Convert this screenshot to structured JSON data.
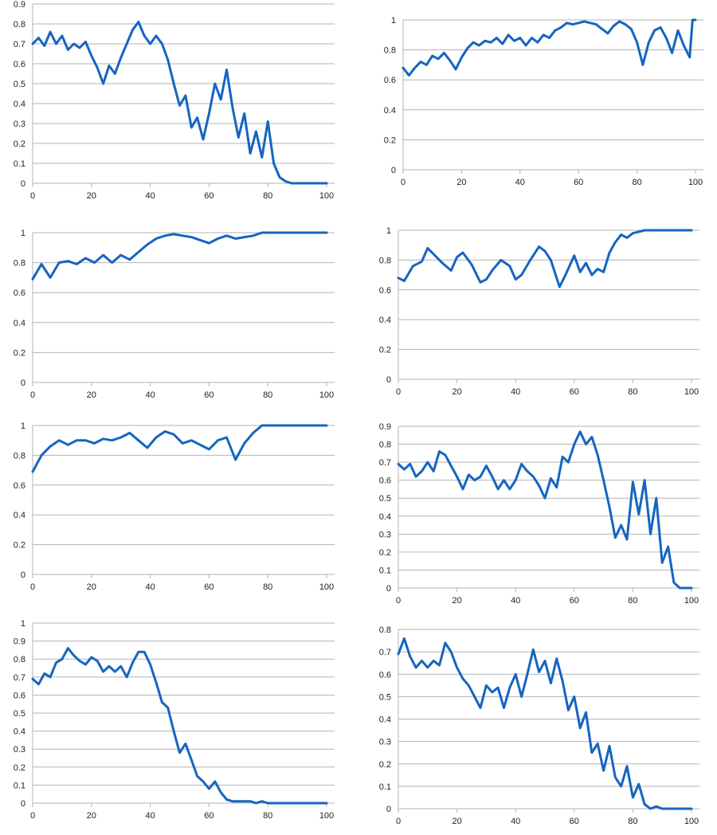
{
  "style": {
    "line_color": "#1565c0",
    "grid_color": "#b3b3b3"
  },
  "chart_data": [
    {
      "type": "line",
      "grid": true,
      "xlim": [
        0,
        100
      ],
      "ylim": [
        0,
        0.9
      ],
      "xticks": [
        0,
        20,
        40,
        60,
        80,
        100
      ],
      "yticks": [
        0,
        0.1,
        0.2,
        0.3,
        0.4,
        0.5,
        0.6,
        0.7,
        0.8,
        0.9
      ],
      "ytick_labels": [
        "0",
        "0.1",
        "0.2",
        "0.3",
        "0.4",
        "0.5",
        "0.6",
        "0.7",
        "0.8",
        "0.9"
      ],
      "x": [
        0,
        2,
        4,
        6,
        8,
        10,
        12,
        14,
        16,
        18,
        20,
        22,
        24,
        26,
        28,
        30,
        32,
        34,
        36,
        38,
        40,
        42,
        44,
        46,
        48,
        50,
        52,
        54,
        56,
        58,
        60,
        62,
        64,
        66,
        68,
        70,
        72,
        74,
        76,
        78,
        80,
        82,
        84,
        86,
        88,
        90,
        92,
        94,
        96,
        98,
        100
      ],
      "y": [
        0.7,
        0.73,
        0.69,
        0.76,
        0.7,
        0.74,
        0.67,
        0.7,
        0.68,
        0.71,
        0.64,
        0.58,
        0.5,
        0.59,
        0.55,
        0.63,
        0.7,
        0.77,
        0.81,
        0.74,
        0.7,
        0.74,
        0.7,
        0.62,
        0.5,
        0.39,
        0.44,
        0.28,
        0.33,
        0.22,
        0.35,
        0.5,
        0.42,
        0.57,
        0.38,
        0.23,
        0.35,
        0.15,
        0.26,
        0.13,
        0.31,
        0.1,
        0.03,
        0.01,
        0.0,
        0.0,
        0.0,
        0.0,
        0.0,
        0.0,
        0.0
      ]
    },
    {
      "type": "line",
      "grid": true,
      "xlim": [
        0,
        100
      ],
      "ylim": [
        0,
        1
      ],
      "xticks": [
        0,
        20,
        40,
        60,
        80,
        100
      ],
      "yticks": [
        0,
        0.2,
        0.4,
        0.6,
        0.8,
        1
      ],
      "ytick_labels": [
        "0",
        "0.2",
        "0.4",
        "0.6",
        "0.8",
        "1"
      ],
      "x": [
        0,
        2,
        4,
        6,
        8,
        10,
        12,
        14,
        16,
        18,
        20,
        22,
        24,
        26,
        28,
        30,
        32,
        34,
        36,
        38,
        40,
        42,
        44,
        46,
        48,
        50,
        52,
        54,
        56,
        58,
        60,
        62,
        64,
        66,
        68,
        70,
        72,
        74,
        76,
        78,
        80,
        82,
        84,
        86,
        88,
        90,
        92,
        94,
        96,
        98,
        99,
        100
      ],
      "y": [
        0.68,
        0.63,
        0.68,
        0.72,
        0.7,
        0.76,
        0.74,
        0.78,
        0.73,
        0.67,
        0.75,
        0.81,
        0.85,
        0.83,
        0.86,
        0.85,
        0.88,
        0.84,
        0.9,
        0.86,
        0.88,
        0.83,
        0.88,
        0.85,
        0.9,
        0.88,
        0.93,
        0.95,
        0.98,
        0.97,
        0.98,
        0.99,
        0.98,
        0.97,
        0.94,
        0.91,
        0.96,
        0.99,
        0.97,
        0.94,
        0.85,
        0.7,
        0.85,
        0.93,
        0.95,
        0.88,
        0.78,
        0.93,
        0.83,
        0.75,
        1.0,
        1.0
      ]
    },
    {
      "type": "line",
      "grid": true,
      "xlim": [
        0,
        100
      ],
      "ylim": [
        0,
        1
      ],
      "xticks": [
        0,
        20,
        40,
        60,
        80,
        100
      ],
      "yticks": [
        0,
        0.2,
        0.4,
        0.6,
        0.8,
        1
      ],
      "ytick_labels": [
        "0",
        "0.2",
        "0.4",
        "0.6",
        "0.8",
        "1"
      ],
      "x": [
        0,
        3,
        6,
        9,
        12,
        15,
        18,
        21,
        24,
        27,
        30,
        33,
        36,
        39,
        42,
        45,
        48,
        51,
        54,
        57,
        60,
        63,
        66,
        69,
        72,
        75,
        78,
        80,
        85,
        90,
        95,
        100
      ],
      "y": [
        0.69,
        0.79,
        0.7,
        0.8,
        0.81,
        0.79,
        0.83,
        0.8,
        0.85,
        0.8,
        0.85,
        0.82,
        0.87,
        0.92,
        0.96,
        0.98,
        0.99,
        0.98,
        0.97,
        0.95,
        0.93,
        0.96,
        0.98,
        0.96,
        0.97,
        0.98,
        1.0,
        1.0,
        1.0,
        1.0,
        1.0,
        1.0
      ]
    },
    {
      "type": "line",
      "grid": true,
      "xlim": [
        0,
        100
      ],
      "ylim": [
        0,
        1
      ],
      "xticks": [
        0,
        20,
        40,
        60,
        80,
        100
      ],
      "yticks": [
        0,
        0.2,
        0.4,
        0.6,
        0.8,
        1
      ],
      "ytick_labels": [
        "0",
        "0.2",
        "0.4",
        "0.6",
        "0.8",
        "1"
      ],
      "x": [
        0,
        2,
        5,
        8,
        10,
        12,
        15,
        18,
        20,
        22,
        25,
        28,
        30,
        32,
        35,
        38,
        40,
        42,
        45,
        48,
        50,
        52,
        55,
        57,
        60,
        62,
        64,
        66,
        68,
        70,
        72,
        74,
        76,
        78,
        80,
        82,
        84,
        90,
        95,
        100
      ],
      "y": [
        0.68,
        0.66,
        0.76,
        0.79,
        0.88,
        0.84,
        0.78,
        0.73,
        0.82,
        0.85,
        0.77,
        0.65,
        0.67,
        0.73,
        0.8,
        0.76,
        0.67,
        0.7,
        0.8,
        0.89,
        0.86,
        0.8,
        0.62,
        0.7,
        0.83,
        0.72,
        0.78,
        0.7,
        0.74,
        0.72,
        0.85,
        0.92,
        0.97,
        0.95,
        0.98,
        0.99,
        1.0,
        1.0,
        1.0,
        1.0
      ]
    },
    {
      "type": "line",
      "grid": true,
      "xlim": [
        0,
        100
      ],
      "ylim": [
        0,
        1
      ],
      "xticks": [
        0,
        20,
        40,
        60,
        80,
        100
      ],
      "yticks": [
        0,
        0.2,
        0.4,
        0.6,
        0.8,
        1
      ],
      "ytick_labels": [
        "0",
        "0.2",
        "0.4",
        "0.6",
        "0.8",
        "1"
      ],
      "x": [
        0,
        3,
        6,
        9,
        12,
        15,
        18,
        21,
        24,
        27,
        30,
        33,
        36,
        39,
        42,
        45,
        48,
        51,
        54,
        57,
        60,
        63,
        66,
        69,
        72,
        75,
        78,
        80,
        85,
        90,
        95,
        100
      ],
      "y": [
        0.69,
        0.8,
        0.86,
        0.9,
        0.87,
        0.9,
        0.9,
        0.88,
        0.91,
        0.9,
        0.92,
        0.95,
        0.9,
        0.85,
        0.92,
        0.96,
        0.94,
        0.88,
        0.9,
        0.87,
        0.84,
        0.9,
        0.92,
        0.77,
        0.88,
        0.95,
        1.0,
        1.0,
        1.0,
        1.0,
        1.0,
        1.0
      ]
    },
    {
      "type": "line",
      "grid": true,
      "xlim": [
        0,
        100
      ],
      "ylim": [
        0,
        0.9
      ],
      "xticks": [
        0,
        20,
        40,
        60,
        80,
        100
      ],
      "yticks": [
        0,
        0.1,
        0.2,
        0.3,
        0.4,
        0.5,
        0.6,
        0.7,
        0.8,
        0.9
      ],
      "ytick_labels": [
        "0",
        "0.1",
        "0.2",
        "0.3",
        "0.4",
        "0.5",
        "0.6",
        "0.7",
        "0.8",
        "0.9"
      ],
      "x": [
        0,
        2,
        4,
        6,
        8,
        10,
        12,
        14,
        16,
        18,
        20,
        22,
        24,
        26,
        28,
        30,
        32,
        34,
        36,
        38,
        40,
        42,
        44,
        46,
        48,
        50,
        52,
        54,
        56,
        58,
        60,
        62,
        64,
        66,
        68,
        70,
        72,
        74,
        76,
        78,
        80,
        82,
        84,
        86,
        88,
        90,
        92,
        94,
        96,
        98,
        100
      ],
      "y": [
        0.69,
        0.66,
        0.69,
        0.62,
        0.65,
        0.7,
        0.65,
        0.76,
        0.74,
        0.68,
        0.62,
        0.55,
        0.63,
        0.6,
        0.62,
        0.68,
        0.62,
        0.55,
        0.6,
        0.55,
        0.6,
        0.69,
        0.65,
        0.62,
        0.57,
        0.5,
        0.61,
        0.56,
        0.73,
        0.7,
        0.8,
        0.87,
        0.8,
        0.84,
        0.74,
        0.6,
        0.45,
        0.28,
        0.35,
        0.27,
        0.59,
        0.41,
        0.6,
        0.3,
        0.5,
        0.14,
        0.23,
        0.03,
        0.0,
        0.0,
        0.0
      ]
    },
    {
      "type": "line",
      "grid": true,
      "xlim": [
        0,
        100
      ],
      "ylim": [
        0,
        1
      ],
      "xticks": [
        0,
        20,
        40,
        60,
        80,
        100
      ],
      "yticks": [
        0,
        0.1,
        0.2,
        0.3,
        0.4,
        0.5,
        0.6,
        0.7,
        0.8,
        0.9,
        1
      ],
      "ytick_labels": [
        "0",
        "0.1",
        "0.2",
        "0.3",
        "0.4",
        "0.5",
        "0.6",
        "0.7",
        "0.8",
        "0.9",
        "1"
      ],
      "x": [
        0,
        2,
        4,
        6,
        8,
        10,
        12,
        14,
        16,
        18,
        20,
        22,
        24,
        26,
        28,
        30,
        32,
        34,
        36,
        38,
        40,
        42,
        44,
        46,
        48,
        50,
        52,
        54,
        56,
        58,
        60,
        62,
        64,
        66,
        68,
        70,
        72,
        74,
        76,
        78,
        80,
        82,
        84,
        86,
        88,
        90,
        92,
        94,
        96,
        98,
        100
      ],
      "y": [
        0.69,
        0.66,
        0.72,
        0.7,
        0.78,
        0.8,
        0.86,
        0.82,
        0.79,
        0.77,
        0.81,
        0.79,
        0.73,
        0.76,
        0.73,
        0.76,
        0.7,
        0.78,
        0.84,
        0.84,
        0.77,
        0.67,
        0.56,
        0.53,
        0.4,
        0.28,
        0.33,
        0.24,
        0.15,
        0.12,
        0.08,
        0.12,
        0.06,
        0.02,
        0.01,
        0.01,
        0.01,
        0.01,
        0.0,
        0.01,
        0.0,
        0.0,
        0.0,
        0.0,
        0.0,
        0.0,
        0.0,
        0.0,
        0.0,
        0.0,
        0.0
      ]
    },
    {
      "type": "line",
      "grid": true,
      "xlim": [
        0,
        100
      ],
      "ylim": [
        0,
        0.8
      ],
      "xticks": [
        0,
        20,
        40,
        60,
        80,
        100
      ],
      "yticks": [
        0,
        0.1,
        0.2,
        0.3,
        0.4,
        0.5,
        0.6,
        0.7,
        0.8
      ],
      "ytick_labels": [
        "0",
        "0.1",
        "0.2",
        "0.3",
        "0.4",
        "0.5",
        "0.6",
        "0.7",
        "0.8"
      ],
      "x": [
        0,
        2,
        4,
        6,
        8,
        10,
        12,
        14,
        16,
        18,
        20,
        22,
        24,
        26,
        28,
        30,
        32,
        34,
        36,
        38,
        40,
        42,
        44,
        46,
        48,
        50,
        52,
        54,
        56,
        58,
        60,
        62,
        64,
        66,
        68,
        70,
        72,
        74,
        76,
        78,
        80,
        82,
        84,
        86,
        88,
        90,
        92,
        94,
        96,
        98,
        100
      ],
      "y": [
        0.69,
        0.76,
        0.68,
        0.63,
        0.66,
        0.63,
        0.66,
        0.64,
        0.74,
        0.7,
        0.63,
        0.58,
        0.55,
        0.5,
        0.45,
        0.55,
        0.52,
        0.54,
        0.45,
        0.54,
        0.6,
        0.5,
        0.6,
        0.71,
        0.61,
        0.66,
        0.56,
        0.67,
        0.57,
        0.44,
        0.5,
        0.36,
        0.43,
        0.25,
        0.29,
        0.17,
        0.28,
        0.14,
        0.1,
        0.19,
        0.05,
        0.11,
        0.02,
        0.0,
        0.01,
        0.0,
        0.0,
        0.0,
        0.0,
        0.0,
        0.0
      ]
    }
  ]
}
